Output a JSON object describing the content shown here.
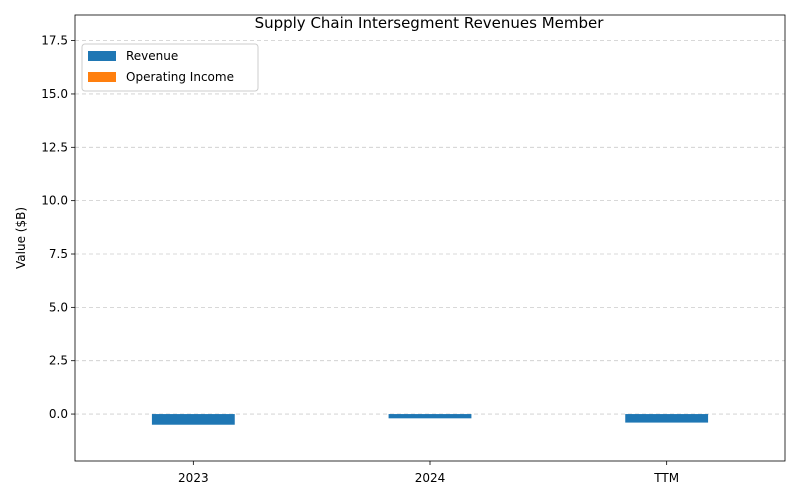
{
  "chart_data": {
    "type": "bar",
    "title": "Supply Chain Intersegment Revenues Member",
    "xlabel": "",
    "ylabel": "Value ($B)",
    "categories": [
      "2023",
      "2024",
      "TTM"
    ],
    "series": [
      {
        "name": "Revenue",
        "color": "#1f77b4",
        "values": [
          -0.5,
          -0.2,
          -0.4
        ]
      },
      {
        "name": "Operating Income",
        "color": "#ff7f0e",
        "values": [
          0,
          0,
          0
        ]
      }
    ],
    "ylim": [
      -2.2,
      18.7
    ],
    "yticks": [
      "0.0",
      "2.5",
      "5.0",
      "7.5",
      "10.0",
      "12.5",
      "15.0",
      "17.5"
    ],
    "grid": true,
    "legend_position": "top-left"
  }
}
